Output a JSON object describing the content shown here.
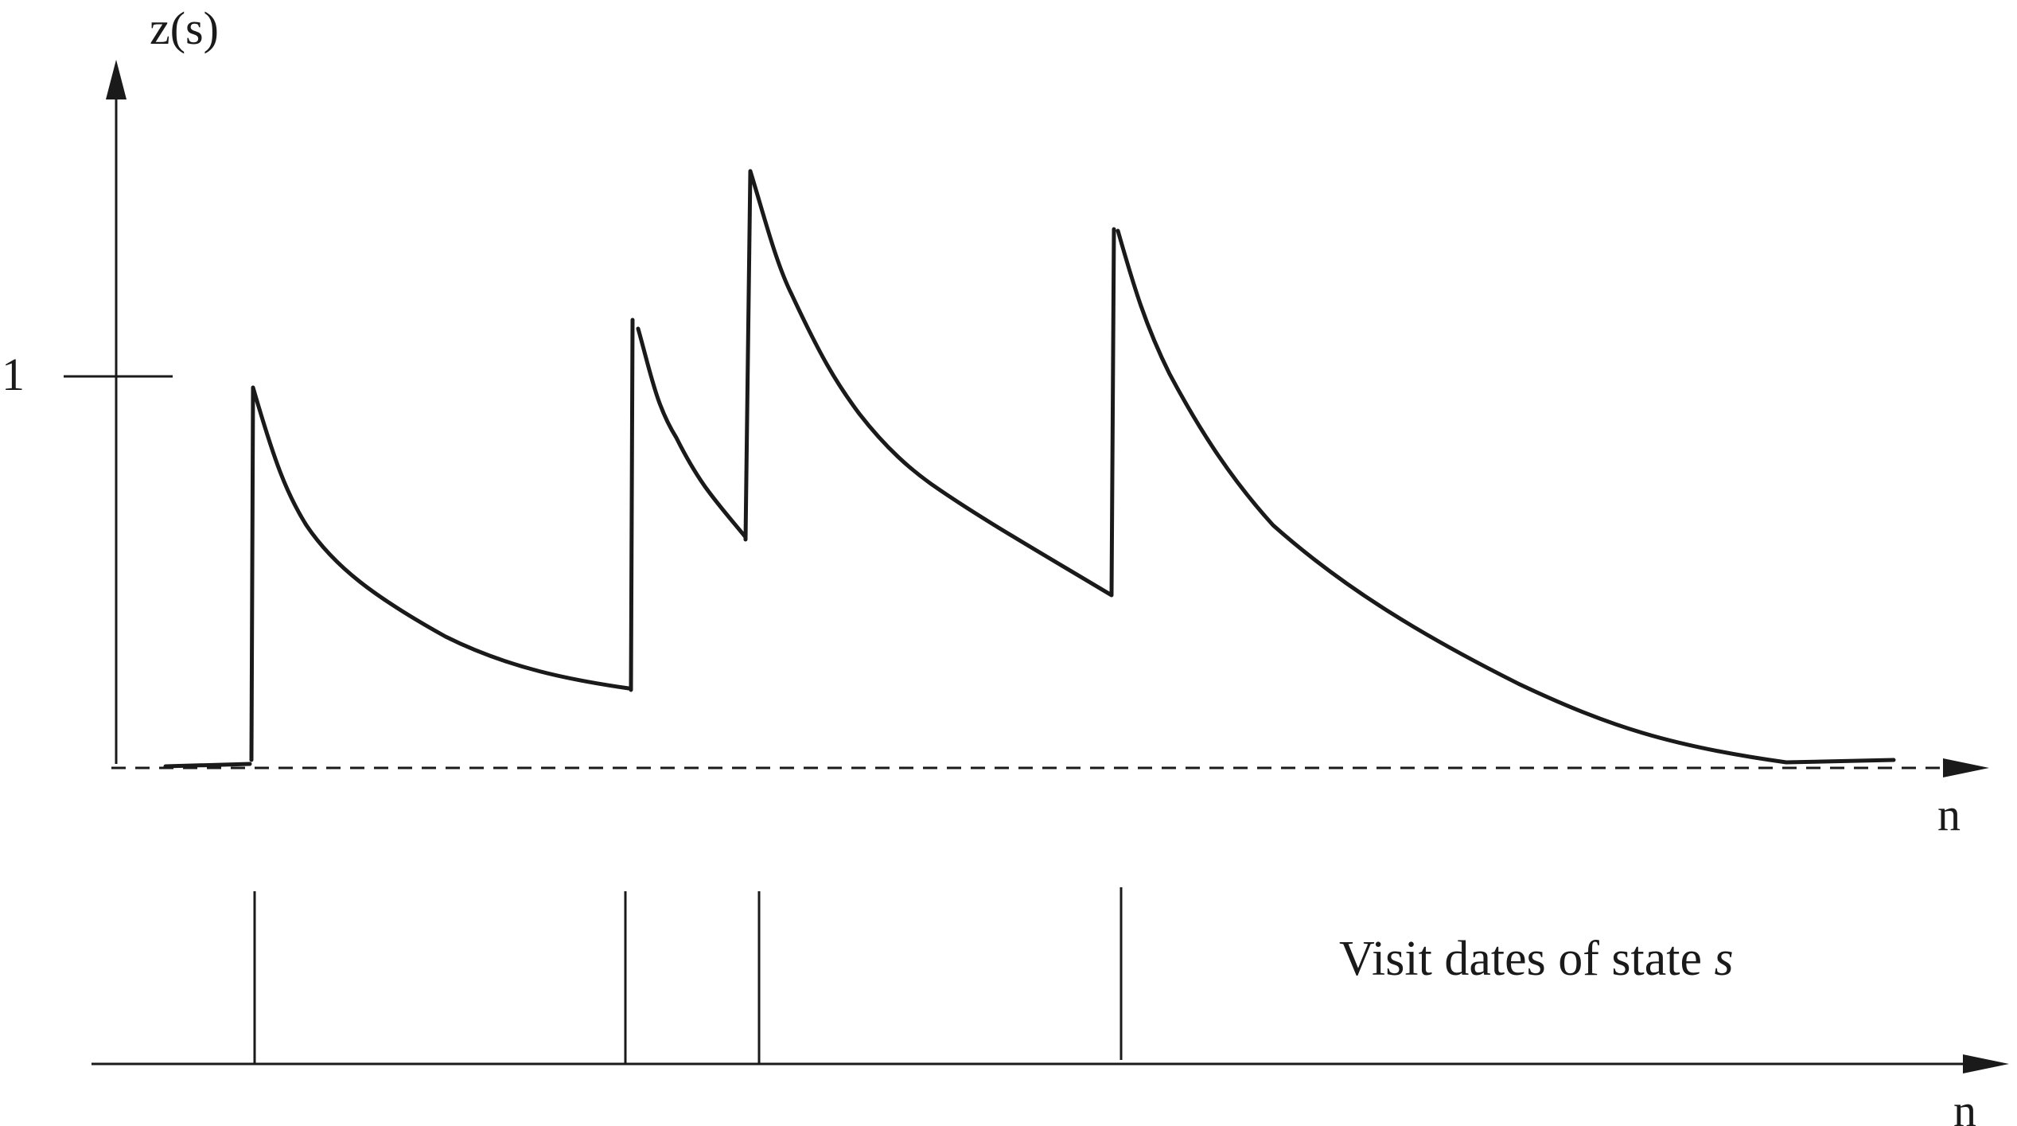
{
  "figure": {
    "top_axis": {
      "y_label": "z(s)",
      "x_label": "n",
      "tick_label": "1"
    },
    "bottom_axis": {
      "x_label": "n",
      "caption_text": "Visit dates of state ",
      "caption_var": "s"
    },
    "visit_count": 4,
    "colors": {
      "ink": "#1a1a1a",
      "background": "#ffffff"
    }
  }
}
